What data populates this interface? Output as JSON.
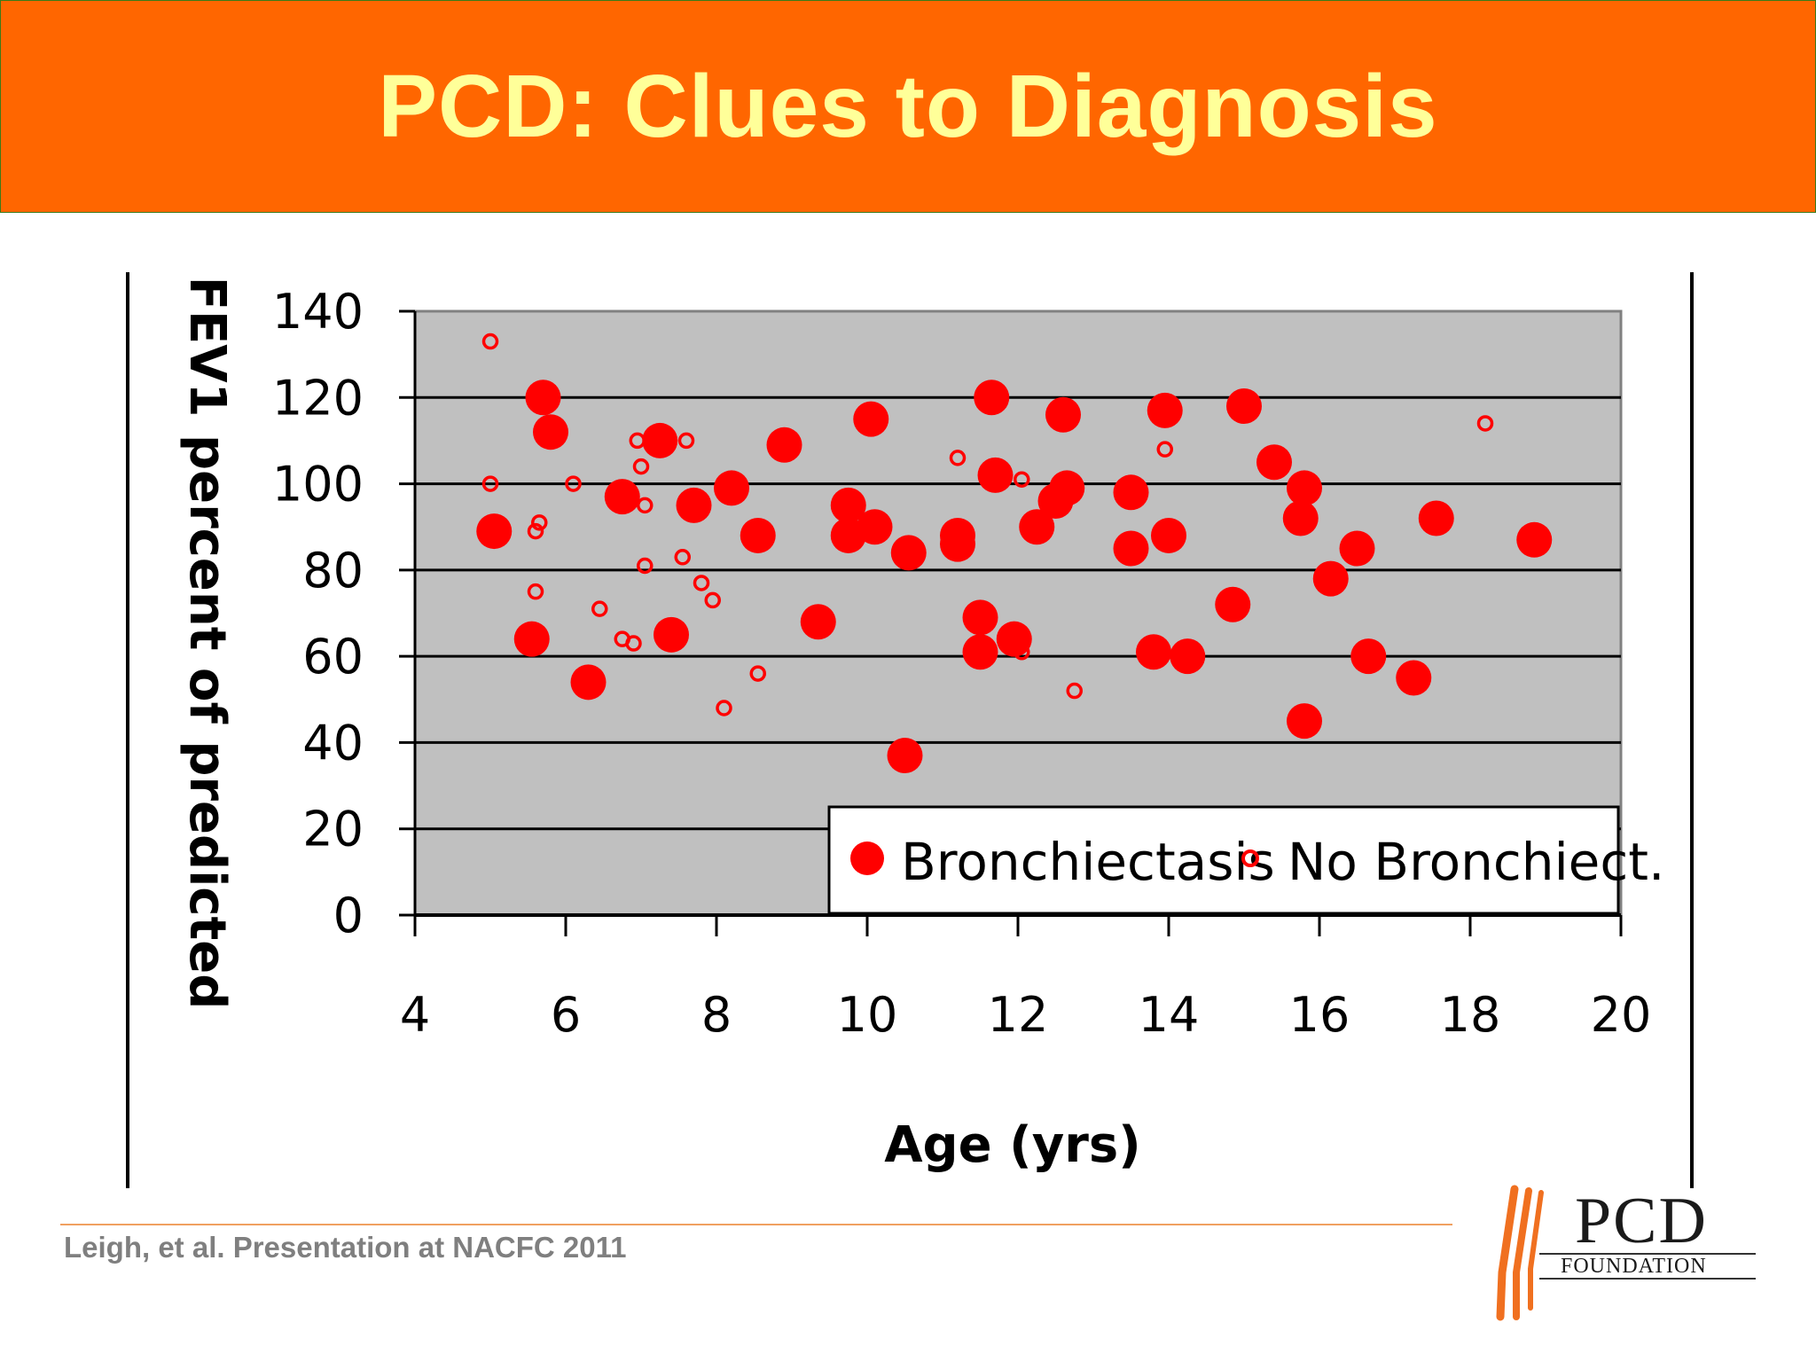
{
  "title": "PCD: Clues to Diagnosis",
  "citation": "Leigh, et al. Presentation at NACFC 2011",
  "logo": {
    "name": "PCD",
    "subtitle": "FOUNDATION"
  },
  "colors": {
    "title_bg": "#ff6600",
    "title_text": "#ffff99",
    "plot_bg": "#c0c0c0",
    "marker": "#ff0000"
  },
  "chart_data": {
    "type": "scatter",
    "xlabel": "Age (yrs)",
    "ylabel": "FEV1 percent of predicted",
    "xlim": [
      4,
      20
    ],
    "ylim": [
      0,
      140
    ],
    "xticks": [
      "4",
      "6",
      "8",
      "10",
      "12",
      "14",
      "16",
      "18",
      "20"
    ],
    "yticks": [
      "0",
      "20",
      "40",
      "60",
      "80",
      "100",
      "120",
      "140"
    ],
    "grid": "horizontal",
    "legend": "bottom-right",
    "series": [
      {
        "name": "Bronchiectasis",
        "marker": "filled-circle",
        "color": "#ff0000",
        "points": [
          [
            5.05,
            89
          ],
          [
            5.7,
            120
          ],
          [
            5.8,
            112
          ],
          [
            5.55,
            64
          ],
          [
            6.3,
            54
          ],
          [
            6.75,
            97
          ],
          [
            7.25,
            110
          ],
          [
            7.4,
            65
          ],
          [
            7.7,
            95
          ],
          [
            8.2,
            99
          ],
          [
            8.55,
            88
          ],
          [
            8.9,
            109
          ],
          [
            9.35,
            68
          ],
          [
            9.75,
            95
          ],
          [
            9.75,
            88
          ],
          [
            10.05,
            115
          ],
          [
            10.1,
            90
          ],
          [
            10.55,
            84
          ],
          [
            10.5,
            37
          ],
          [
            11.2,
            88
          ],
          [
            11.2,
            86
          ],
          [
            11.5,
            69
          ],
          [
            11.5,
            61
          ],
          [
            11.65,
            120
          ],
          [
            11.7,
            102
          ],
          [
            11.95,
            64
          ],
          [
            12.25,
            90
          ],
          [
            12.5,
            96
          ],
          [
            12.6,
            116
          ],
          [
            12.65,
            99
          ],
          [
            13.5,
            98
          ],
          [
            13.5,
            85
          ],
          [
            13.8,
            61
          ],
          [
            13.95,
            117
          ],
          [
            14.0,
            88
          ],
          [
            14.25,
            60
          ],
          [
            14.85,
            72
          ],
          [
            15.0,
            118
          ],
          [
            15.4,
            105
          ],
          [
            15.8,
            99
          ],
          [
            15.75,
            92
          ],
          [
            15.8,
            45
          ],
          [
            16.15,
            78
          ],
          [
            16.5,
            85
          ],
          [
            16.65,
            60
          ],
          [
            17.25,
            55
          ],
          [
            17.55,
            92
          ],
          [
            18.85,
            87
          ]
        ]
      },
      {
        "name": "No Bronchiect.",
        "marker": "open-circle",
        "color": "#ff0000",
        "points": [
          [
            5.0,
            133
          ],
          [
            5.0,
            100
          ],
          [
            5.6,
            89
          ],
          [
            5.65,
            91
          ],
          [
            5.6,
            75
          ],
          [
            6.1,
            100
          ],
          [
            6.45,
            71
          ],
          [
            6.75,
            64
          ],
          [
            6.9,
            63
          ],
          [
            6.95,
            110
          ],
          [
            7.0,
            104
          ],
          [
            7.05,
            95
          ],
          [
            7.05,
            81
          ],
          [
            7.6,
            110
          ],
          [
            7.55,
            83
          ],
          [
            7.8,
            77
          ],
          [
            7.95,
            73
          ],
          [
            8.1,
            48
          ],
          [
            8.55,
            56
          ],
          [
            11.2,
            106
          ],
          [
            12.05,
            101
          ],
          [
            12.05,
            61
          ],
          [
            12.75,
            52
          ],
          [
            13.95,
            108
          ],
          [
            18.2,
            114
          ]
        ]
      }
    ]
  }
}
